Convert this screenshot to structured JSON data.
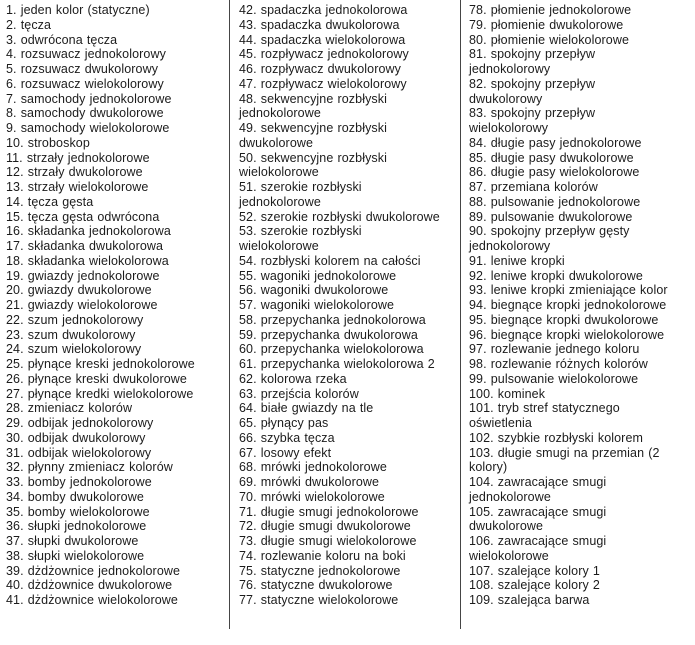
{
  "page": {
    "background_color": "#ffffff",
    "text_color": "#1c1c1c",
    "divider_color": "#454545",
    "description": "numbered-effects-list-document"
  },
  "list": {
    "columns": [
      {
        "items": [
          "1. jeden kolor (statyczne)",
          "2. tęcza",
          "3. odwrócona tęcza",
          "4. rozsuwacz jednokolorowy",
          "5. rozsuwacz dwukolorowy",
          "6. rozsuwacz wielokolorowy",
          "7. samochody jednokolorowe",
          "8. samochody dwukolorowe",
          "9. samochody wielokolorowe",
          "10. stroboskop",
          "11. strzały jednokolorowe",
          "12. strzały dwukolorowe",
          "13. strzały wielokolorowe",
          "14. tęcza gęsta",
          "15. tęcza gęsta odwrócona",
          "16. składanka jednokolorowa",
          "17. składanka dwukolorowa",
          "18. składanka wielokolorowa",
          "19. gwiazdy jednokolorowe",
          "20. gwiazdy dwukolorowe",
          "21. gwiazdy wielokolorowe",
          "22. szum jednokolorowy",
          "23. szum dwukolorowy",
          "24. szum wielokolorowy",
          "25. płynące kreski jednokolorowe",
          "26. płynące kreski dwukolorowe",
          "27. płynące kredki wielokolorowe",
          "28. zmieniacz kolorów",
          "29. odbijak jednokolorowy",
          "30. odbijak dwukolorowy",
          "31. odbijak wielokolorowy",
          "32. płynny zmieniacz kolorów",
          "33. bomby jednokolorowe",
          "34. bomby dwukolorowe",
          "35. bomby wielokolorowe",
          "36. słupki jednokolorowe",
          "37. słupki dwukolorowe",
          "38. słupki wielokolorowe",
          "39. dżdżownice jednokolorowe",
          "40. dżdżownice dwukolorowe",
          "41. dżdżownice wielokolorowe"
        ]
      },
      {
        "items": [
          "42. spadaczka jednokolorowa",
          "43. spadaczka dwukolorowa",
          "44. spadaczka wielokolorowa",
          "45. rozpływacz jednokolorowy",
          "46. rozpływacz dwukolorowy",
          "47. rozpływacz wielokolorowy",
          "48. sekwencyjne rozbłyski jednokolorowe",
          "49. sekwencyjne rozbłyski dwukolorowe",
          "50. sekwencyjne rozbłyski wielokolorowe",
          "51. szerokie rozbłyski jednokolorowe",
          "52. szerokie rozbłyski dwukolorowe",
          "53. szerokie rozbłyski wielokolorowe",
          "54. rozbłyski kolorem na całości",
          "55. wagoniki jednokolorowe",
          "56. wagoniki dwukolorowe",
          "57. wagoniki wielokolorowe",
          "58. przepychanka jednokolorowa",
          "59. przepychanka dwukolorowa",
          "60. przepychanka wielokolorowa",
          "61. przepychanka wielokolorowa 2",
          "62. kolorowa rzeka",
          "63. przejścia kolorów",
          "64. białe gwiazdy na tle",
          "65. płynący pas",
          "66. szybka tęcza",
          "67. losowy efekt",
          "68. mrówki jednokolorowe",
          "69. mrówki dwukolorowe",
          "70. mrówki wielokolorowe",
          "71. długie smugi jednokolorowe",
          "72. długie smugi dwukolorowe",
          "73. długie smugi wielokolorowe",
          "74. rozlewanie koloru na boki",
          "75. statyczne jednokolorowe",
          "76. statyczne dwukolorowe",
          "77. statyczne wielokolorowe"
        ]
      },
      {
        "items": [
          "78. płomienie jednokolorowe",
          "79. płomienie dwukolorowe",
          "80. płomienie wielokolorowe",
          "81. spokojny przepływ jednokolorowy",
          "82. spokojny przepływ dwukolorowy",
          "83. spokojny przepływ wielokolorowy",
          "84. długie pasy jednokolorowe",
          "85. długie pasy dwukolorowe",
          "86. długie pasy wielokolorowe",
          "87. przemiana kolorów",
          "88. pulsowanie jednokolorowe",
          "89. pulsowanie dwukolorowe",
          "90. spokojny przepływ gęsty jednokolorowy",
          "91. leniwe kropki",
          "92. leniwe kropki dwukolorowe",
          "93. leniwe kropki zmieniające kolor",
          "94. biegnące kropki jednokolorowe",
          "95. biegnące kropki dwukolorowe",
          "96. biegnące kropki wielokolorowe",
          "97. rozlewanie jednego koloru",
          "98. rozlewanie różnych kolorów",
          "99. pulsowanie wielokolorowe",
          "100. kominek",
          "101. tryb stref statycznego oświetlenia",
          "102. szybkie rozbłyski kolorem",
          "103. długie smugi na przemian (2 kolory)",
          "104. zawracające smugi jednokolorowe",
          "105. zawracające smugi dwukolorowe",
          "106. zawracające smugi wielokolorowe",
          "107. szalejące kolory 1",
          "108. szalejące kolory 2",
          "109. szalejąca barwa"
        ]
      }
    ]
  }
}
